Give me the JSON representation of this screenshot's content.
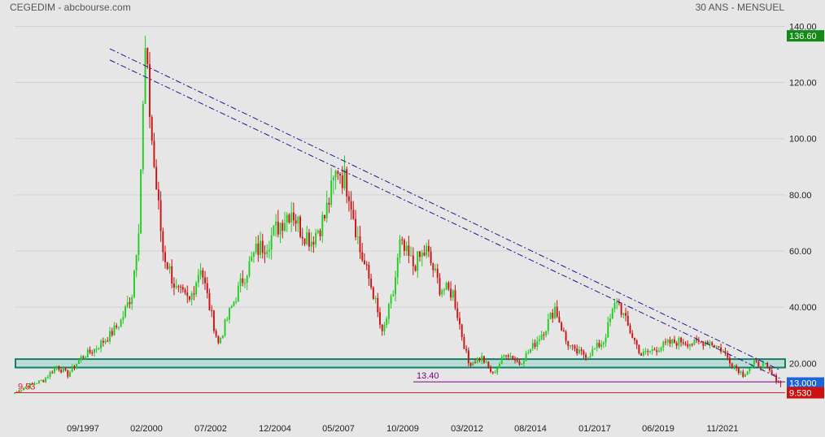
{
  "header": {
    "left": "CEGEDIM - abcbourse.com",
    "right": "30 ANS - MENSUEL"
  },
  "colors": {
    "background": "#e6e6e6",
    "up_candle": "#22cc22",
    "down_candle": "#cc1111",
    "trendline": "#1a1a99",
    "support_zone_border": "#0f7f6a",
    "support_zone_fill": "#9fd6c9",
    "support_line": "#800080",
    "low_line": "#e02020",
    "last_price_tag": "#1e63d8",
    "high_price_tag": "#138a13",
    "low_price_tag": "#cc1111"
  },
  "chart_data": {
    "type": "candlestick",
    "title": "CEGEDIM - abcbourse.com",
    "subtitle": "30 ANS - MENSUEL",
    "x_tick_labels": [
      "09/1997",
      "02/2000",
      "07/2002",
      "12/2004",
      "05/2007",
      "10/2009",
      "03/2012",
      "08/2014",
      "01/2017",
      "06/2019",
      "11/2021"
    ],
    "y_ticks": [
      20,
      40,
      60,
      80,
      100,
      120,
      140
    ],
    "y_tick_labels": [
      "20.000",
      "40.000",
      "60.00",
      "80.00",
      "100.00",
      "120.00",
      "140.00"
    ],
    "ylim": [
      6.5,
      143
    ],
    "x_range": [
      "1995-03",
      "2024-03"
    ],
    "price_tags": {
      "high": "136.60",
      "last": "13.000",
      "low": "9.530"
    },
    "annotations": {
      "low_label": "9.53",
      "support_label": "13.40"
    },
    "levels": {
      "high": 136.6,
      "low": 9.53,
      "support": 13.4,
      "last": 13.0
    },
    "support_zone": [
      18.5,
      21.5
    ],
    "trendlines": [
      {
        "from": [
          "1998-10",
          132
        ],
        "to": [
          "2024-01",
          17.5
        ]
      },
      {
        "from": [
          "1998-10",
          128
        ],
        "to": [
          "2024-01",
          14.5
        ]
      }
    ],
    "anchor_closes": [
      [
        "1995-03",
        9.5
      ],
      [
        "1995-09",
        12
      ],
      [
        "1996-04",
        14
      ],
      [
        "1996-10",
        19
      ],
      [
        "1997-03",
        16
      ],
      [
        "1997-09",
        22
      ],
      [
        "1998-03",
        25
      ],
      [
        "1998-10",
        30
      ],
      [
        "1999-03",
        35
      ],
      [
        "1999-08",
        45
      ],
      [
        "1999-11",
        70
      ],
      [
        "2000-02",
        130
      ],
      [
        "2000-06",
        90
      ],
      [
        "2000-10",
        60
      ],
      [
        "2001-04",
        46
      ],
      [
        "2001-10",
        42
      ],
      [
        "2002-03",
        55
      ],
      [
        "2002-07",
        40
      ],
      [
        "2002-11",
        27
      ],
      [
        "2003-04",
        38
      ],
      [
        "2003-10",
        50
      ],
      [
        "2004-04",
        60
      ],
      [
        "2004-09",
        63
      ],
      [
        "2005-03",
        70
      ],
      [
        "2005-08",
        75
      ],
      [
        "2005-12",
        68
      ],
      [
        "2006-05",
        64
      ],
      [
        "2006-11",
        72
      ],
      [
        "2007-05",
        90
      ],
      [
        "2007-10",
        82
      ],
      [
        "2008-03",
        60
      ],
      [
        "2008-09",
        45
      ],
      [
        "2009-01",
        30
      ],
      [
        "2009-06",
        45
      ],
      [
        "2009-09",
        62
      ],
      [
        "2010-03",
        55
      ],
      [
        "2010-09",
        60
      ],
      [
        "2011-03",
        47
      ],
      [
        "2011-09",
        45
      ],
      [
        "2012-01",
        30
      ],
      [
        "2012-04",
        20
      ],
      [
        "2012-10",
        22
      ],
      [
        "2013-03",
        16
      ],
      [
        "2013-09",
        24
      ],
      [
        "2014-03",
        20
      ],
      [
        "2014-09",
        26
      ],
      [
        "2015-03",
        33
      ],
      [
        "2015-07",
        40
      ],
      [
        "2015-12",
        28
      ],
      [
        "2016-04",
        24
      ],
      [
        "2016-10",
        23
      ],
      [
        "2017-05",
        28
      ],
      [
        "2017-11",
        43
      ],
      [
        "2018-04",
        33
      ],
      [
        "2018-10",
        23
      ],
      [
        "2019-04",
        25
      ],
      [
        "2019-10",
        27
      ],
      [
        "2020-04",
        28
      ],
      [
        "2020-10",
        27
      ],
      [
        "2021-04",
        28
      ],
      [
        "2021-10",
        25
      ],
      [
        "2022-03",
        20
      ],
      [
        "2022-08",
        16
      ],
      [
        "2023-01",
        20
      ],
      [
        "2023-06",
        19
      ],
      [
        "2023-10",
        15
      ],
      [
        "2024-01",
        13
      ]
    ]
  }
}
